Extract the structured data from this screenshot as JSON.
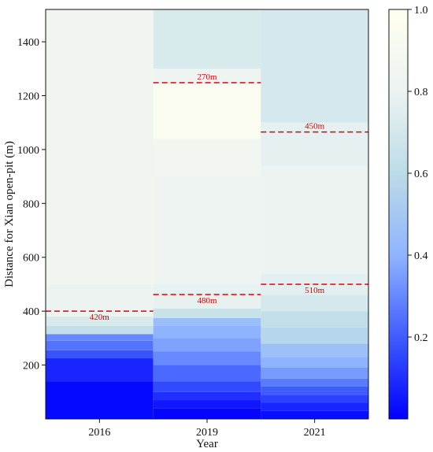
{
  "chart_data": {
    "type": "heatmap",
    "title": "",
    "xlabel": "Year",
    "ylabel": "Distance for Xian open-pit (m)",
    "categories": [
      "2016",
      "2019",
      "2021"
    ],
    "ylim": [
      0,
      1520
    ],
    "yticks": [
      200,
      400,
      600,
      800,
      1000,
      1200,
      1400
    ],
    "colorbar": {
      "range": [
        0,
        1.0
      ],
      "ticks": [
        0.2,
        0.4,
        0.6,
        0.8,
        1.0
      ],
      "tick_labels": [
        "0.2",
        "0.4",
        "0.6",
        "0.8",
        "1.0"
      ],
      "colors": [
        "#0000ff",
        "#3f5cff",
        "#8fb4ff",
        "#bcdce8",
        "#ecf3f1",
        "#ffffee"
      ]
    },
    "series": [
      {
        "year": "2016",
        "bands": [
          {
            "from": 0,
            "to": 140,
            "value": 0.02
          },
          {
            "from": 140,
            "to": 225,
            "value": 0.08
          },
          {
            "from": 225,
            "to": 255,
            "value": 0.18
          },
          {
            "from": 255,
            "to": 290,
            "value": 0.25
          },
          {
            "from": 290,
            "to": 315,
            "value": 0.3
          },
          {
            "from": 315,
            "to": 345,
            "value": 0.62
          },
          {
            "from": 345,
            "to": 380,
            "value": 0.72
          },
          {
            "from": 380,
            "to": 500,
            "value": 0.8
          },
          {
            "from": 500,
            "to": 1520,
            "value": 0.84
          }
        ]
      },
      {
        "year": "2019",
        "bands": [
          {
            "from": 0,
            "to": 40,
            "value": 0.01
          },
          {
            "from": 40,
            "to": 70,
            "value": 0.05
          },
          {
            "from": 70,
            "to": 100,
            "value": 0.1
          },
          {
            "from": 100,
            "to": 140,
            "value": 0.16
          },
          {
            "from": 140,
            "to": 200,
            "value": 0.23
          },
          {
            "from": 200,
            "to": 250,
            "value": 0.3
          },
          {
            "from": 250,
            "to": 300,
            "value": 0.36
          },
          {
            "from": 300,
            "to": 345,
            "value": 0.4
          },
          {
            "from": 345,
            "to": 375,
            "value": 0.45
          },
          {
            "from": 375,
            "to": 410,
            "value": 0.65
          },
          {
            "from": 410,
            "to": 500,
            "value": 0.78
          },
          {
            "from": 500,
            "to": 900,
            "value": 0.82
          },
          {
            "from": 900,
            "to": 1040,
            "value": 0.85
          },
          {
            "from": 1040,
            "to": 1240,
            "value": 0.95
          },
          {
            "from": 1240,
            "to": 1300,
            "value": 0.82
          },
          {
            "from": 1300,
            "to": 1520,
            "value": 0.72
          }
        ]
      },
      {
        "year": "2021",
        "bands": [
          {
            "from": 0,
            "to": 30,
            "value": 0.03
          },
          {
            "from": 30,
            "to": 60,
            "value": 0.08
          },
          {
            "from": 60,
            "to": 90,
            "value": 0.14
          },
          {
            "from": 90,
            "to": 120,
            "value": 0.2
          },
          {
            "from": 120,
            "to": 150,
            "value": 0.27
          },
          {
            "from": 150,
            "to": 190,
            "value": 0.34
          },
          {
            "from": 190,
            "to": 230,
            "value": 0.4
          },
          {
            "from": 230,
            "to": 280,
            "value": 0.46
          },
          {
            "from": 280,
            "to": 340,
            "value": 0.57
          },
          {
            "from": 340,
            "to": 400,
            "value": 0.62
          },
          {
            "from": 400,
            "to": 460,
            "value": 0.7
          },
          {
            "from": 460,
            "to": 540,
            "value": 0.76
          },
          {
            "from": 540,
            "to": 940,
            "value": 0.8
          },
          {
            "from": 940,
            "to": 1100,
            "value": 0.77
          },
          {
            "from": 1100,
            "to": 1520,
            "value": 0.7
          }
        ]
      }
    ],
    "annotations": [
      {
        "year": "2016",
        "y": 400,
        "label": "420m",
        "label_position": "below"
      },
      {
        "year": "2019",
        "y": 1248,
        "label": "270m",
        "label_position": "above"
      },
      {
        "year": "2019",
        "y": 462,
        "label": "480m",
        "label_position": "below"
      },
      {
        "year": "2021",
        "y": 1065,
        "label": "450m",
        "label_position": "above"
      },
      {
        "year": "2021",
        "y": 500,
        "label": "510m",
        "label_position": "below"
      }
    ]
  }
}
